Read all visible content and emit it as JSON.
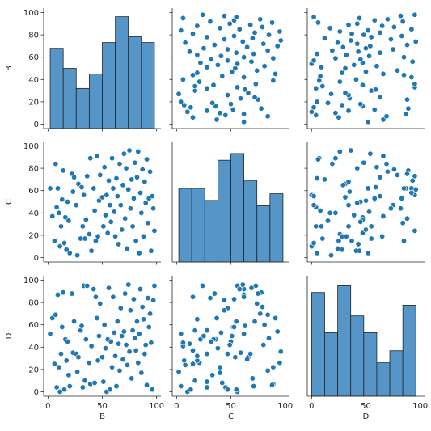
{
  "figure": {
    "colors": {
      "marker": "#1f77b4",
      "bar": "#4c8fc4",
      "edge": "#262626",
      "axis": "#262626"
    }
  },
  "chart_data": {
    "type": "pairplot",
    "variables": [
      "B",
      "C",
      "D"
    ],
    "axis_ranges": {
      "B": [
        -4,
        104
      ],
      "C": [
        -4,
        104
      ],
      "D": [
        -4,
        104
      ]
    },
    "ticks": [
      0,
      20,
      40,
      60,
      80,
      100
    ],
    "ticks_bottom": [
      0,
      50,
      100
    ],
    "grid": false,
    "legend": "none",
    "histograms": {
      "B": {
        "bin_edges": [
          2,
          14,
          26,
          38,
          50,
          62,
          74,
          86,
          98
        ],
        "counts": [
          14,
          10.5,
          7,
          9.5,
          15,
          19.5,
          16,
          15
        ],
        "ylim": [
          0,
          21
        ]
      },
      "C": {
        "bin_edges": [
          2,
          14,
          26,
          38,
          50,
          62,
          74,
          86,
          98
        ],
        "counts": [
          11,
          11,
          9.2,
          15.2,
          16.2,
          12.2,
          8.4,
          10.2
        ],
        "ylim": [
          0,
          18
        ]
      },
      "D": {
        "bin_edges": [
          0,
          12,
          24,
          36,
          48,
          60,
          72,
          84,
          96
        ],
        "counts": [
          15.5,
          9.5,
          16.5,
          12,
          9.5,
          5,
          6.8,
          13.6
        ],
        "ylim": [
          0,
          18
        ]
      }
    },
    "points": [
      {
        "B": 2,
        "C": 62,
        "D": 52
      },
      {
        "B": 4,
        "C": 37,
        "D": 66
      },
      {
        "B": 6,
        "C": 15,
        "D": 25
      },
      {
        "B": 7,
        "C": 84,
        "D": 69
      },
      {
        "B": 8,
        "C": 45,
        "D": 4
      },
      {
        "B": 9,
        "C": 62,
        "D": 87
      },
      {
        "B": 10,
        "C": 40,
        "D": 22
      },
      {
        "B": 11,
        "C": 10,
        "D": 0
      },
      {
        "B": 12,
        "C": 28,
        "D": 34
      },
      {
        "B": 13,
        "C": 52,
        "D": 58
      },
      {
        "B": 14,
        "C": 78,
        "D": 89
      },
      {
        "B": 15,
        "C": 13,
        "D": 2
      },
      {
        "B": 16,
        "C": 36,
        "D": 47
      },
      {
        "B": 17,
        "C": 7,
        "D": 28
      },
      {
        "B": 18,
        "C": 50,
        "D": 45
      },
      {
        "B": 19,
        "C": 33,
        "D": 15
      },
      {
        "B": 20,
        "C": 4,
        "D": 5
      },
      {
        "B": 22,
        "C": 75,
        "D": 88
      },
      {
        "B": 23,
        "C": 59,
        "D": 35
      },
      {
        "B": 24,
        "C": 72,
        "D": 63
      },
      {
        "B": 26,
        "C": 47,
        "D": 34
      },
      {
        "B": 27,
        "C": 2,
        "D": 18
      },
      {
        "B": 28,
        "C": 66,
        "D": 31
      },
      {
        "B": 30,
        "C": 17,
        "D": 55
      },
      {
        "B": 31,
        "C": 63,
        "D": 59
      },
      {
        "B": 32,
        "C": 28,
        "D": 4
      },
      {
        "B": 33,
        "C": 56,
        "D": 95
      },
      {
        "B": 34,
        "C": 17,
        "D": 10
      },
      {
        "B": 35,
        "C": 34,
        "D": 47
      },
      {
        "B": 36,
        "C": 73,
        "D": 95
      },
      {
        "B": 38,
        "C": 21,
        "D": 26
      },
      {
        "B": 39,
        "C": 89,
        "D": 7
      },
      {
        "B": 40,
        "C": 6,
        "D": 41
      },
      {
        "B": 42,
        "C": 62,
        "D": 92
      },
      {
        "B": 43,
        "C": 42,
        "D": 8
      },
      {
        "B": 44,
        "C": 15,
        "D": 85
      },
      {
        "B": 45,
        "C": 91,
        "D": 66
      },
      {
        "B": 46,
        "C": 19,
        "D": 28
      },
      {
        "B": 47,
        "C": 51,
        "D": 50
      },
      {
        "B": 48,
        "C": 74,
        "D": 79
      },
      {
        "B": 50,
        "C": 54,
        "D": 31
      },
      {
        "B": 51,
        "C": 28,
        "D": 9
      },
      {
        "B": 52,
        "C": 81,
        "D": 60
      },
      {
        "B": 53,
        "C": 38,
        "D": 39
      },
      {
        "B": 54,
        "C": 56,
        "D": 0
      },
      {
        "B": 55,
        "C": 22,
        "D": 47
      },
      {
        "B": 56,
        "C": 69,
        "D": 93
      },
      {
        "B": 57,
        "C": 47,
        "D": 2
      },
      {
        "B": 58,
        "C": 32,
        "D": 45
      },
      {
        "B": 59,
        "C": 89,
        "D": 22
      },
      {
        "B": 60,
        "C": 62,
        "D": 85
      },
      {
        "B": 61,
        "C": 41,
        "D": 53
      },
      {
        "B": 62,
        "C": 19,
        "D": 32
      },
      {
        "B": 63,
        "C": 71,
        "D": 5
      },
      {
        "B": 64,
        "C": 55,
        "D": 63
      },
      {
        "B": 65,
        "C": 12,
        "D": 43
      },
      {
        "B": 66,
        "C": 84,
        "D": 19
      },
      {
        "B": 67,
        "C": 47,
        "D": 75
      },
      {
        "B": 68,
        "C": 25,
        "D": 50
      },
      {
        "B": 69,
        "C": 65,
        "D": 29
      },
      {
        "B": 70,
        "C": 93,
        "D": 54
      },
      {
        "B": 71,
        "C": 35,
        "D": 88
      },
      {
        "B": 72,
        "C": 80,
        "D": 42
      },
      {
        "B": 73,
        "C": 8,
        "D": 24
      },
      {
        "B": 74,
        "C": 61,
        "D": 96
      },
      {
        "B": 75,
        "C": 96,
        "D": 36
      },
      {
        "B": 76,
        "C": 44,
        "D": 73
      },
      {
        "B": 77,
        "C": 70,
        "D": 12
      },
      {
        "B": 78,
        "C": 28,
        "D": 55
      },
      {
        "B": 79,
        "C": 53,
        "D": 83
      },
      {
        "B": 80,
        "C": 85,
        "D": 48
      },
      {
        "B": 81,
        "C": 15,
        "D": 37
      },
      {
        "B": 82,
        "C": 72,
        "D": 63
      },
      {
        "B": 83,
        "C": 95,
        "D": 26
      },
      {
        "B": 84,
        "C": 4,
        "D": 52
      },
      {
        "B": 85,
        "C": 58,
        "D": 92
      },
      {
        "B": 86,
        "C": 40,
        "D": 17
      },
      {
        "B": 87,
        "C": 79,
        "D": 76
      },
      {
        "B": 88,
        "C": 19,
        "D": 65
      },
      {
        "B": 89,
        "C": 68,
        "D": 34
      },
      {
        "B": 90,
        "C": 49,
        "D": 42
      },
      {
        "B": 91,
        "C": 88,
        "D": 6
      },
      {
        "B": 92,
        "C": 31,
        "D": 84
      },
      {
        "B": 93,
        "C": 53,
        "D": 58
      },
      {
        "B": 94,
        "C": 77,
        "D": 70
      },
      {
        "B": 95,
        "C": 6,
        "D": 44
      },
      {
        "B": 96,
        "C": 55,
        "D": 2
      },
      {
        "B": 97,
        "C": 44,
        "D": 82
      },
      {
        "B": 98,
        "C": 24,
        "D": 95
      }
    ]
  }
}
